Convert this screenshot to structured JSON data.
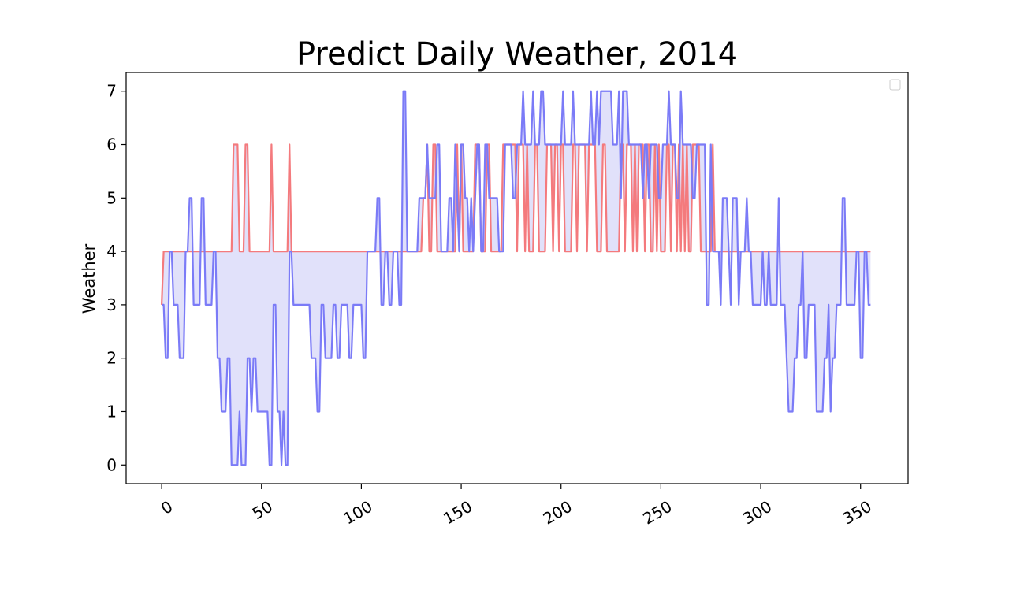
{
  "chart_data": {
    "type": "line",
    "title": "Predict Daily Weather, 2014",
    "xlabel": "",
    "ylabel": "Weather",
    "xlim": [
      -17.8,
      373.8
    ],
    "ylim": [
      -0.35,
      7.35
    ],
    "xticks": [
      0,
      50,
      100,
      150,
      200,
      250,
      300,
      350
    ],
    "yticks": [
      0,
      1,
      2,
      3,
      4,
      5,
      6,
      7
    ],
    "grid": false,
    "legend": {
      "placement": "top-right",
      "entries": []
    },
    "fill_between": true,
    "fill_color": "#e1e1fa",
    "series": [
      {
        "color": "#7b7bf7",
        "steps": [
          [
            0,
            3
          ],
          [
            2,
            2
          ],
          [
            4,
            4
          ],
          [
            6,
            3
          ],
          [
            9,
            2
          ],
          [
            12,
            4
          ],
          [
            14,
            5
          ],
          [
            16,
            3
          ],
          [
            20,
            5
          ],
          [
            22,
            3
          ],
          [
            26,
            4
          ],
          [
            28,
            2
          ],
          [
            30,
            1
          ],
          [
            33,
            2
          ],
          [
            35,
            0
          ],
          [
            39,
            1
          ],
          [
            40,
            0
          ],
          [
            43,
            2
          ],
          [
            45,
            1
          ],
          [
            46,
            2
          ],
          [
            48,
            1
          ],
          [
            54,
            0
          ],
          [
            56,
            3
          ],
          [
            58,
            1
          ],
          [
            60,
            0
          ],
          [
            61,
            1
          ],
          [
            62,
            0
          ],
          [
            64,
            4
          ],
          [
            66,
            3
          ],
          [
            75,
            2
          ],
          [
            78,
            1
          ],
          [
            80,
            3
          ],
          [
            82,
            2
          ],
          [
            86,
            3
          ],
          [
            88,
            2
          ],
          [
            90,
            3
          ],
          [
            94,
            2
          ],
          [
            96,
            3
          ],
          [
            99,
            3
          ],
          [
            101,
            2
          ],
          [
            103,
            4
          ],
          [
            108,
            5
          ],
          [
            110,
            3
          ],
          [
            112,
            4
          ],
          [
            114,
            3
          ],
          [
            116,
            4
          ],
          [
            119,
            3
          ],
          [
            121,
            7
          ],
          [
            123,
            4
          ],
          [
            129,
            5
          ],
          [
            133,
            6
          ],
          [
            134,
            5
          ],
          [
            138,
            6
          ],
          [
            140,
            4
          ],
          [
            144,
            5
          ],
          [
            146,
            4
          ],
          [
            147,
            6
          ],
          [
            148,
            5
          ],
          [
            149,
            4
          ],
          [
            150,
            6
          ],
          [
            152,
            5
          ],
          [
            154,
            4
          ],
          [
            155,
            5
          ],
          [
            156,
            4
          ],
          [
            157,
            5
          ],
          [
            158,
            6
          ],
          [
            160,
            4
          ],
          [
            162,
            6
          ],
          [
            164,
            5
          ],
          [
            169,
            4
          ],
          [
            172,
            6
          ],
          [
            176,
            5
          ],
          [
            178,
            6
          ],
          [
            181,
            7
          ],
          [
            182,
            6
          ],
          [
            186,
            7
          ],
          [
            187,
            6
          ],
          [
            190,
            7
          ],
          [
            192,
            6
          ],
          [
            201,
            7
          ],
          [
            202,
            6
          ],
          [
            206,
            7
          ],
          [
            207,
            6
          ],
          [
            215,
            7
          ],
          [
            216,
            6
          ],
          [
            218,
            7
          ],
          [
            219,
            6
          ],
          [
            220,
            7
          ],
          [
            226,
            6
          ],
          [
            229,
            7
          ],
          [
            230,
            5
          ],
          [
            231,
            7
          ],
          [
            234,
            6
          ],
          [
            241,
            5
          ],
          [
            242,
            6
          ],
          [
            244,
            5
          ],
          [
            245,
            6
          ],
          [
            249,
            5
          ],
          [
            251,
            6
          ],
          [
            254,
            7
          ],
          [
            255,
            6
          ],
          [
            258,
            5
          ],
          [
            260,
            7
          ],
          [
            261,
            6
          ],
          [
            266,
            5
          ],
          [
            268,
            6
          ],
          [
            273,
            3
          ],
          [
            275,
            6
          ],
          [
            276,
            4
          ],
          [
            280,
            3
          ],
          [
            281,
            5
          ],
          [
            284,
            4
          ],
          [
            285,
            3
          ],
          [
            286,
            5
          ],
          [
            289,
            3
          ],
          [
            290,
            4
          ],
          [
            293,
            5
          ],
          [
            294,
            4
          ],
          [
            296,
            3
          ],
          [
            301,
            4
          ],
          [
            302,
            3
          ],
          [
            304,
            4
          ],
          [
            305,
            3
          ],
          [
            309,
            5
          ],
          [
            310,
            3
          ],
          [
            313,
            2
          ],
          [
            314,
            1
          ],
          [
            317,
            2
          ],
          [
            319,
            3
          ],
          [
            321,
            4
          ],
          [
            322,
            2
          ],
          [
            324,
            3
          ],
          [
            328,
            1
          ],
          [
            332,
            2
          ],
          [
            334,
            3
          ],
          [
            335,
            1
          ],
          [
            336,
            2
          ],
          [
            338,
            3
          ],
          [
            341,
            5
          ],
          [
            343,
            3
          ],
          [
            347,
            3
          ],
          [
            348,
            4
          ],
          [
            350,
            2
          ],
          [
            352,
            4
          ],
          [
            354,
            3
          ]
        ],
        "end_x": 356
      },
      {
        "color": "#f47a7d",
        "steps": [
          [
            0,
            3
          ],
          [
            1,
            4
          ],
          [
            36,
            6
          ],
          [
            39,
            4
          ],
          [
            42,
            6
          ],
          [
            44,
            4
          ],
          [
            55,
            6
          ],
          [
            56,
            4
          ],
          [
            64,
            6
          ],
          [
            65,
            4
          ],
          [
            119,
            4
          ],
          [
            131,
            5
          ],
          [
            133,
            6
          ],
          [
            134,
            4
          ],
          [
            136,
            6
          ],
          [
            138,
            4
          ],
          [
            148,
            6
          ],
          [
            149,
            4
          ],
          [
            150,
            6
          ],
          [
            151,
            4
          ],
          [
            157,
            6
          ],
          [
            160,
            4
          ],
          [
            163,
            6
          ],
          [
            165,
            4
          ],
          [
            171,
            6
          ],
          [
            178,
            4
          ],
          [
            179,
            6
          ],
          [
            182,
            4
          ],
          [
            183,
            6
          ],
          [
            184,
            4
          ],
          [
            187,
            6
          ],
          [
            189,
            4
          ],
          [
            193,
            6
          ],
          [
            196,
            4
          ],
          [
            197,
            6
          ],
          [
            199,
            4
          ],
          [
            200,
            6
          ],
          [
            202,
            4
          ],
          [
            206,
            6
          ],
          [
            208,
            4
          ],
          [
            209,
            6
          ],
          [
            213,
            4
          ],
          [
            214,
            6
          ],
          [
            218,
            4
          ],
          [
            221,
            6
          ],
          [
            223,
            4
          ],
          [
            230,
            6
          ],
          [
            232,
            4
          ],
          [
            233,
            6
          ],
          [
            236,
            4
          ],
          [
            237,
            6
          ],
          [
            238,
            4
          ],
          [
            239,
            6
          ],
          [
            242,
            4
          ],
          [
            243,
            6
          ],
          [
            245,
            4
          ],
          [
            247,
            6
          ],
          [
            248,
            4
          ],
          [
            249,
            6
          ],
          [
            250,
            4
          ],
          [
            253,
            6
          ],
          [
            255,
            4
          ],
          [
            256,
            6
          ],
          [
            258,
            4
          ],
          [
            259,
            6
          ],
          [
            260,
            4
          ],
          [
            261,
            6
          ],
          [
            262,
            4
          ],
          [
            263,
            6
          ],
          [
            264,
            4
          ],
          [
            266,
            6
          ],
          [
            270,
            4
          ],
          [
            276,
            6
          ],
          [
            277,
            4
          ]
        ],
        "end_x": 356
      }
    ]
  }
}
